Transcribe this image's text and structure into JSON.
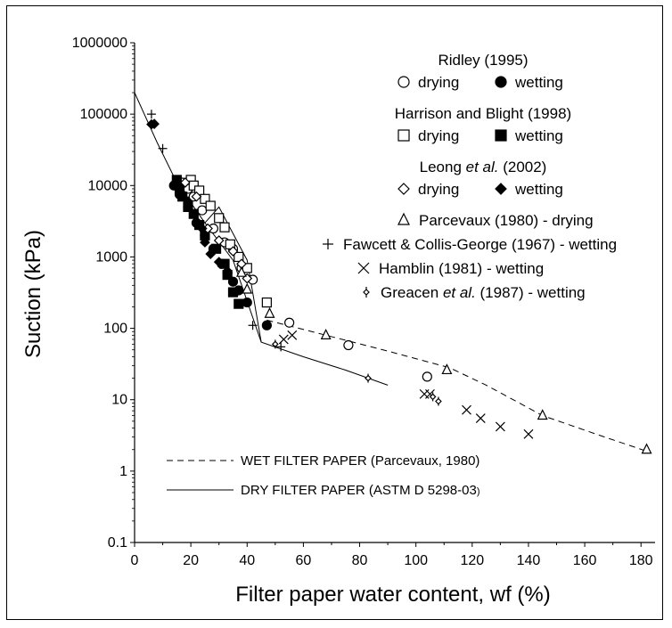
{
  "chart_data": {
    "type": "scatter",
    "title": "",
    "xlabel": "Filter paper water content, wf (%)",
    "ylabel": "Suction (kPa)",
    "xlim": [
      0,
      185
    ],
    "ylim": [
      0.1,
      1000000
    ],
    "yscale": "log",
    "grid": false,
    "x_ticks": [
      "0",
      "20",
      "40",
      "60",
      "80",
      "100",
      "120",
      "140",
      "160",
      "180"
    ],
    "y_ticks": [
      "0.1",
      "1",
      "10",
      "100",
      "1000",
      "10000",
      "100000",
      "1000000"
    ],
    "legend": {
      "placement": "top-right",
      "groups": [
        {
          "title": "Ridley (1995)",
          "title_plain": "Ridley",
          "title_italic": "",
          "title_tail": " (1995)",
          "entries": [
            {
              "label": "drying",
              "marker": "circle-open"
            },
            {
              "label": "wetting",
              "marker": "circle-filled"
            }
          ]
        },
        {
          "title": "Harrison and Blight (1998)",
          "title_plain": "Harrison and Blight",
          "title_italic": "",
          "title_tail": " (1998)",
          "entries": [
            {
              "label": "drying",
              "marker": "square-open"
            },
            {
              "label": "wetting",
              "marker": "square-filled"
            }
          ]
        },
        {
          "title": "Leong et al. (2002)",
          "title_plain": "Leong ",
          "title_italic": "et al.",
          "title_tail": " (2002)",
          "entries": [
            {
              "label": "drying",
              "marker": "diamond-open"
            },
            {
              "label": "wetting",
              "marker": "diamond-filled"
            }
          ]
        }
      ],
      "single": [
        {
          "label": "Parcevaux (1980) - drying",
          "label_plain": "Parcevaux (1980) - drying",
          "label_italic": "",
          "label_tail": "",
          "marker": "triangle-open"
        },
        {
          "label": "Fawcett & Collis-George (1967) - wetting",
          "label_plain": "Fawcett & Collis-George (1967) - wetting",
          "label_italic": "",
          "label_tail": "",
          "marker": "plus"
        },
        {
          "label": "Hamblin (1981) - wetting",
          "label_plain": "Hamblin (1981) - wetting",
          "label_italic": "",
          "label_tail": "",
          "marker": "cross"
        },
        {
          "label": "Greacen et al. (1987) - wetting",
          "label_plain": "Greacen ",
          "label_italic": "et al.",
          "label_tail": " (1987) - wetting",
          "marker": "star"
        }
      ]
    },
    "curves": [
      {
        "name": "WET FILTER PAPER (Parcevaux, 1980)",
        "style": "dashed",
        "points": [
          [
            47,
            130
          ],
          [
            68,
            80
          ],
          [
            90,
            48
          ],
          [
            112,
            28
          ],
          [
            125,
            16
          ],
          [
            145,
            6
          ],
          [
            165,
            3.2
          ],
          [
            182,
            1.9
          ]
        ]
      },
      {
        "name": "DRY FILTER PAPER (ASTM D 5298-03)",
        "name_main": "DRY FILTER PAPER (ASTM D 5298-03",
        "name_tail": ")",
        "style": "solid",
        "points": [
          [
            0,
            200000
          ],
          [
            8,
            40000
          ],
          [
            15,
            11000
          ],
          [
            25,
            3000
          ],
          [
            35,
            900
          ],
          [
            45,
            64
          ],
          [
            60,
            40
          ],
          [
            75,
            26
          ],
          [
            90,
            16
          ]
        ]
      }
    ],
    "branch_curve": {
      "style": "solid",
      "points": [
        [
          25,
          3000
        ],
        [
          30,
          5000
        ],
        [
          40,
          900
        ],
        [
          45,
          64
        ]
      ]
    },
    "series": [
      {
        "name": "Ridley (1995) drying",
        "marker": "circle-open",
        "points": [
          [
            17,
            11000
          ],
          [
            19,
            9000
          ],
          [
            21,
            7000
          ],
          [
            24,
            4500
          ],
          [
            28,
            2500
          ],
          [
            32,
            1600
          ],
          [
            35,
            1300
          ],
          [
            38,
            700
          ],
          [
            42,
            480
          ],
          [
            55,
            120
          ],
          [
            76,
            58
          ],
          [
            104,
            21
          ]
        ]
      },
      {
        "name": "Ridley (1995) wetting",
        "marker": "circle-filled",
        "points": [
          [
            14,
            10000
          ],
          [
            16,
            7500
          ],
          [
            19,
            5000
          ],
          [
            22,
            3000
          ],
          [
            25,
            2000
          ],
          [
            28,
            1300
          ],
          [
            31,
            800
          ],
          [
            33,
            600
          ],
          [
            35,
            450
          ],
          [
            37,
            340
          ],
          [
            40,
            230
          ],
          [
            47,
            110
          ]
        ]
      },
      {
        "name": "Harrison and Blight (1998) drying",
        "marker": "square-open",
        "points": [
          [
            20,
            12000
          ],
          [
            21,
            10000
          ],
          [
            23,
            8500
          ],
          [
            25,
            6500
          ],
          [
            27,
            5200
          ],
          [
            30,
            3500
          ],
          [
            32,
            2600
          ],
          [
            34,
            1500
          ],
          [
            37,
            1000
          ],
          [
            40,
            700
          ],
          [
            47,
            230
          ]
        ]
      },
      {
        "name": "Harrison and Blight (1998) wetting",
        "marker": "square-filled",
        "points": [
          [
            15,
            12000
          ],
          [
            16,
            9000
          ],
          [
            17,
            7000
          ],
          [
            19,
            5000
          ],
          [
            21,
            4000
          ],
          [
            23,
            2800
          ],
          [
            25,
            2000
          ],
          [
            29,
            1300
          ],
          [
            32,
            800
          ],
          [
            33,
            560
          ],
          [
            35,
            320
          ],
          [
            37,
            220
          ]
        ]
      },
      {
        "name": "Leong et al. (2002) drying",
        "marker": "diamond-open",
        "points": [
          [
            18,
            11000
          ],
          [
            22,
            7000
          ],
          [
            26,
            2500
          ],
          [
            30,
            1700
          ],
          [
            35,
            1200
          ],
          [
            38,
            800
          ],
          [
            40,
            500
          ]
        ]
      },
      {
        "name": "Leong et al. (2002) wetting",
        "marker": "diamond-filled",
        "points": [
          [
            6,
            72000
          ],
          [
            7,
            73000
          ],
          [
            19,
            6000
          ],
          [
            24,
            2500
          ],
          [
            25,
            1600
          ],
          [
            27,
            1100
          ],
          [
            30,
            850
          ],
          [
            33,
            600
          ]
        ]
      },
      {
        "name": "Parcevaux (1980) - drying",
        "marker": "triangle-open",
        "points": [
          [
            38,
            600
          ],
          [
            40,
            350
          ],
          [
            48,
            160
          ],
          [
            68,
            80
          ],
          [
            111,
            26
          ],
          [
            145,
            6
          ],
          [
            182,
            2
          ]
        ]
      },
      {
        "name": "Fawcett & Collis-George (1967) - wetting",
        "marker": "plus",
        "points": [
          [
            6,
            100000
          ],
          [
            10,
            33000
          ],
          [
            42,
            110
          ],
          [
            52,
            55
          ]
        ]
      },
      {
        "name": "Hamblin (1981) - wetting",
        "marker": "cross",
        "points": [
          [
            37,
            220
          ],
          [
            53,
            70
          ],
          [
            56,
            80
          ],
          [
            103,
            12
          ],
          [
            105,
            12
          ],
          [
            118,
            7.2
          ],
          [
            123,
            5.5
          ],
          [
            130,
            4.2
          ],
          [
            140,
            3.3
          ]
        ]
      },
      {
        "name": "Greacen et al. (1987) - wetting",
        "marker": "star",
        "points": [
          [
            50,
            60
          ],
          [
            83,
            20
          ],
          [
            106,
            11
          ],
          [
            108,
            9.5
          ]
        ]
      }
    ]
  }
}
